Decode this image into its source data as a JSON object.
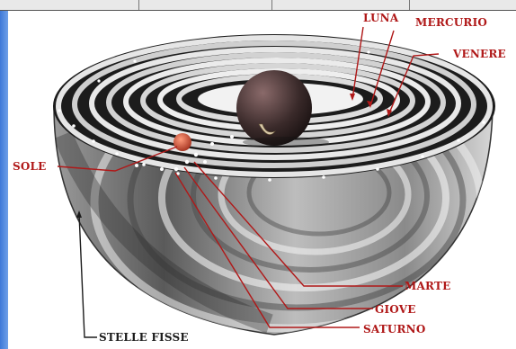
{
  "labels": {
    "luna": "LUNA",
    "mercurio": "MERCURIO",
    "venere": "VENERE",
    "sole": "SOLE",
    "marte": "MARTE",
    "giove": "GIOVE",
    "saturno": "SATURNO",
    "stelle_fisse": "STELLE FISSE"
  },
  "colors": {
    "label_red": "#b01818",
    "label_dark": "#1b1b1b",
    "sun": "#c0503a",
    "earth": "#3a2a2a",
    "sidebar_blue": "#3d78d8"
  }
}
